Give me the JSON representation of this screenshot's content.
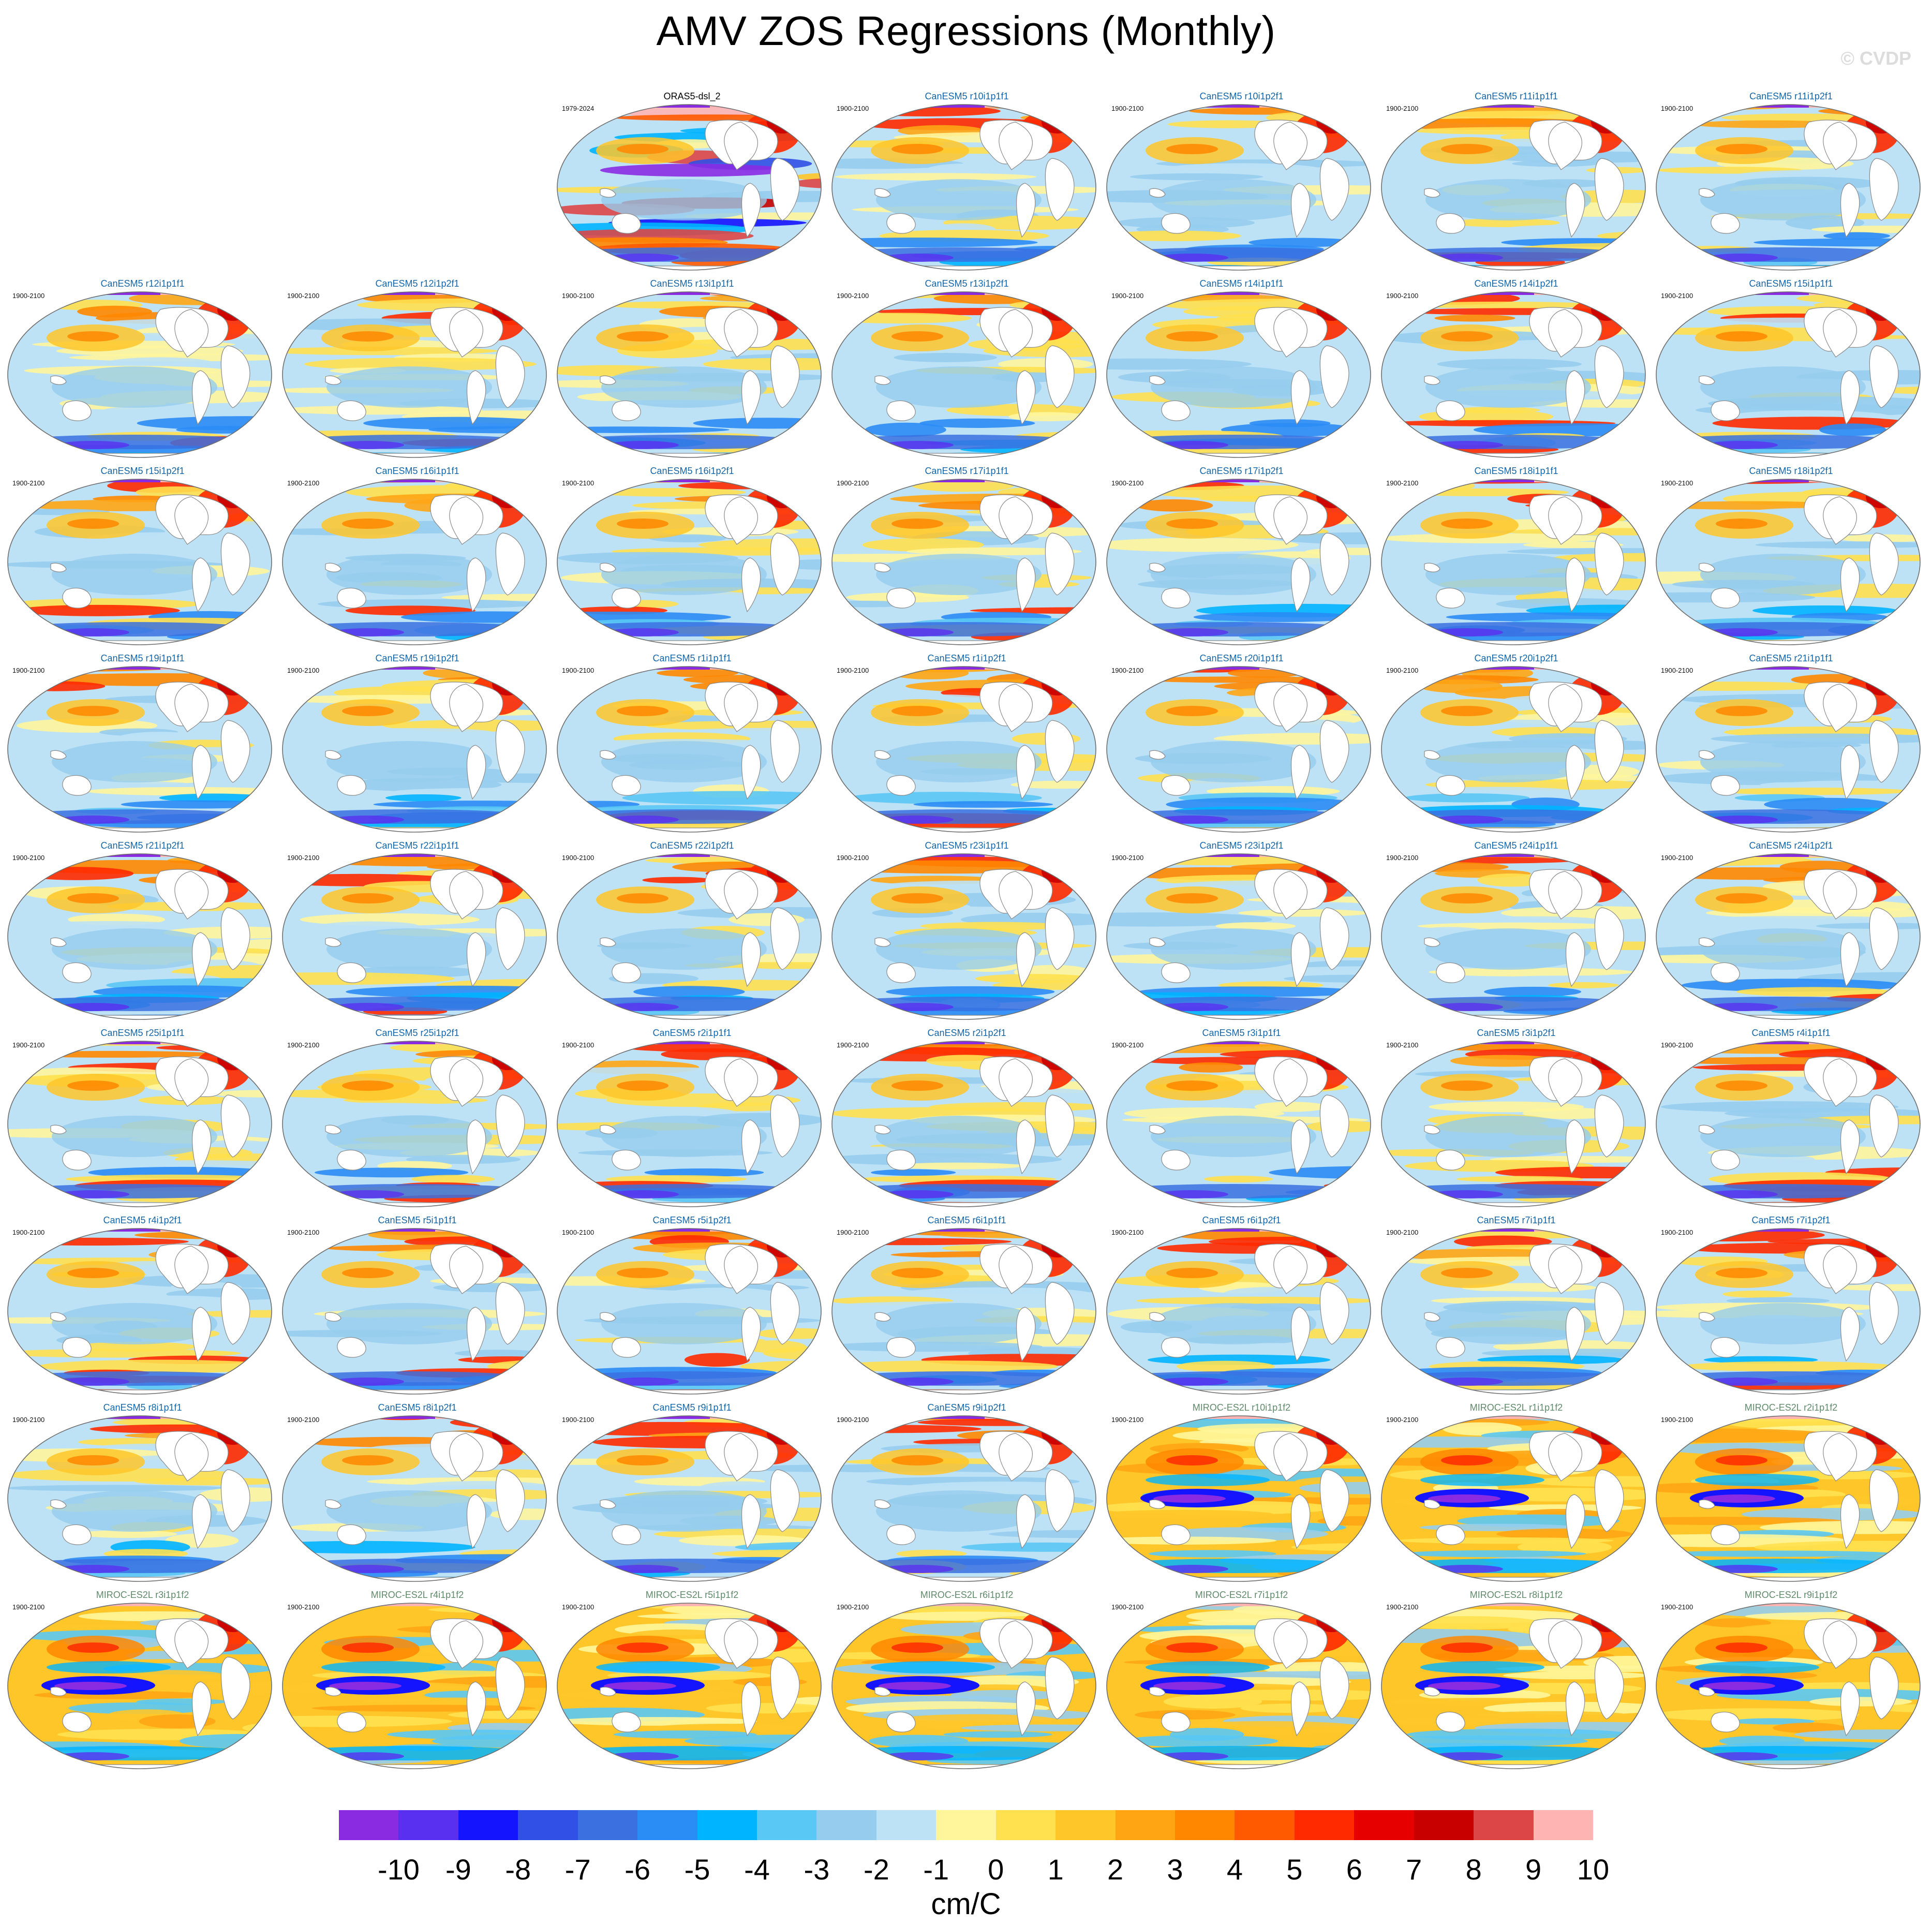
{
  "title": "AMV ZOS Regressions (Monthly)",
  "watermark": "© CVDP",
  "colorbar": {
    "colors": [
      "#8a2be2",
      "#5a30f0",
      "#1414ff",
      "#3050e6",
      "#3a70e0",
      "#2a8cf5",
      "#00b4ff",
      "#5ac8f5",
      "#96cdee",
      "#bee2f5",
      "#fff69c",
      "#ffe14f",
      "#ffc629",
      "#ffa514",
      "#ff8700",
      "#ff5a00",
      "#ff2a00",
      "#e60000",
      "#c80000",
      "#dc4646",
      "#ffb4b4"
    ],
    "labels": [
      "-10",
      "-9",
      "-8",
      "-7",
      "-6",
      "-5",
      "-4",
      "-3",
      "-2",
      "-1",
      "0",
      "1",
      "2",
      "3",
      "4",
      "5",
      "6",
      "7",
      "8",
      "9",
      "10"
    ],
    "units": "cm/C"
  },
  "panels": [
    {
      "run": "ORAS5-dsl_2",
      "period": "1979-2024",
      "model": "obs"
    },
    {
      "run": "CanESM5 r10i1p1f1",
      "period": "1900-2100",
      "model": "canesm"
    },
    {
      "run": "CanESM5 r10i1p2f1",
      "period": "1900-2100",
      "model": "canesm"
    },
    {
      "run": "CanESM5 r11i1p1f1",
      "period": "1900-2100",
      "model": "canesm"
    },
    {
      "run": "CanESM5 r11i1p2f1",
      "period": "1900-2100",
      "model": "canesm"
    },
    {
      "run": "CanESM5 r12i1p1f1",
      "period": "1900-2100",
      "model": "canesm"
    },
    {
      "run": "CanESM5 r12i1p2f1",
      "period": "1900-2100",
      "model": "canesm"
    },
    {
      "run": "CanESM5 r13i1p1f1",
      "period": "1900-2100",
      "model": "canesm"
    },
    {
      "run": "CanESM5 r13i1p2f1",
      "period": "1900-2100",
      "model": "canesm"
    },
    {
      "run": "CanESM5 r14i1p1f1",
      "period": "1900-2100",
      "model": "canesm"
    },
    {
      "run": "CanESM5 r14i1p2f1",
      "period": "1900-2100",
      "model": "canesm"
    },
    {
      "run": "CanESM5 r15i1p1f1",
      "period": "1900-2100",
      "model": "canesm"
    },
    {
      "run": "CanESM5 r15i1p2f1",
      "period": "1900-2100",
      "model": "canesm"
    },
    {
      "run": "CanESM5 r16i1p1f1",
      "period": "1900-2100",
      "model": "canesm"
    },
    {
      "run": "CanESM5 r16i1p2f1",
      "period": "1900-2100",
      "model": "canesm"
    },
    {
      "run": "CanESM5 r17i1p1f1",
      "period": "1900-2100",
      "model": "canesm"
    },
    {
      "run": "CanESM5 r17i1p2f1",
      "period": "1900-2100",
      "model": "canesm"
    },
    {
      "run": "CanESM5 r18i1p1f1",
      "period": "1900-2100",
      "model": "canesm"
    },
    {
      "run": "CanESM5 r18i1p2f1",
      "period": "1900-2100",
      "model": "canesm"
    },
    {
      "run": "CanESM5 r19i1p1f1",
      "period": "1900-2100",
      "model": "canesm"
    },
    {
      "run": "CanESM5 r19i1p2f1",
      "period": "1900-2100",
      "model": "canesm"
    },
    {
      "run": "CanESM5 r1i1p1f1",
      "period": "1900-2100",
      "model": "canesm"
    },
    {
      "run": "CanESM5 r1i1p2f1",
      "period": "1900-2100",
      "model": "canesm"
    },
    {
      "run": "CanESM5 r20i1p1f1",
      "period": "1900-2100",
      "model": "canesm"
    },
    {
      "run": "CanESM5 r20i1p2f1",
      "period": "1900-2100",
      "model": "canesm"
    },
    {
      "run": "CanESM5 r21i1p1f1",
      "period": "1900-2100",
      "model": "canesm"
    },
    {
      "run": "CanESM5 r21i1p2f1",
      "period": "1900-2100",
      "model": "canesm"
    },
    {
      "run": "CanESM5 r22i1p1f1",
      "period": "1900-2100",
      "model": "canesm"
    },
    {
      "run": "CanESM5 r22i1p2f1",
      "period": "1900-2100",
      "model": "canesm"
    },
    {
      "run": "CanESM5 r23i1p1f1",
      "period": "1900-2100",
      "model": "canesm"
    },
    {
      "run": "CanESM5 r23i1p2f1",
      "period": "1900-2100",
      "model": "canesm"
    },
    {
      "run": "CanESM5 r24i1p1f1",
      "period": "1900-2100",
      "model": "canesm"
    },
    {
      "run": "CanESM5 r24i1p2f1",
      "period": "1900-2100",
      "model": "canesm"
    },
    {
      "run": "CanESM5 r25i1p1f1",
      "period": "1900-2100",
      "model": "canesm"
    },
    {
      "run": "CanESM5 r25i1p2f1",
      "period": "1900-2100",
      "model": "canesm"
    },
    {
      "run": "CanESM5 r2i1p1f1",
      "period": "1900-2100",
      "model": "canesm"
    },
    {
      "run": "CanESM5 r2i1p2f1",
      "period": "1900-2100",
      "model": "canesm"
    },
    {
      "run": "CanESM5 r3i1p1f1",
      "period": "1900-2100",
      "model": "canesm"
    },
    {
      "run": "CanESM5 r3i1p2f1",
      "period": "1900-2100",
      "model": "canesm"
    },
    {
      "run": "CanESM5 r4i1p1f1",
      "period": "1900-2100",
      "model": "canesm"
    },
    {
      "run": "CanESM5 r4i1p2f1",
      "period": "1900-2100",
      "model": "canesm"
    },
    {
      "run": "CanESM5 r5i1p1f1",
      "period": "1900-2100",
      "model": "canesm"
    },
    {
      "run": "CanESM5 r5i1p2f1",
      "period": "1900-2100",
      "model": "canesm"
    },
    {
      "run": "CanESM5 r6i1p1f1",
      "period": "1900-2100",
      "model": "canesm"
    },
    {
      "run": "CanESM5 r6i1p2f1",
      "period": "1900-2100",
      "model": "canesm"
    },
    {
      "run": "CanESM5 r7i1p1f1",
      "period": "1900-2100",
      "model": "canesm"
    },
    {
      "run": "CanESM5 r7i1p2f1",
      "period": "1900-2100",
      "model": "canesm"
    },
    {
      "run": "CanESM5 r8i1p1f1",
      "period": "1900-2100",
      "model": "canesm"
    },
    {
      "run": "CanESM5 r8i1p2f1",
      "period": "1900-2100",
      "model": "canesm"
    },
    {
      "run": "CanESM5 r9i1p1f1",
      "period": "1900-2100",
      "model": "canesm"
    },
    {
      "run": "CanESM5 r9i1p2f1",
      "period": "1900-2100",
      "model": "canesm"
    },
    {
      "run": "MIROC-ES2L r10i1p1f2",
      "period": "1900-2100",
      "model": "miroc"
    },
    {
      "run": "MIROC-ES2L r1i1p1f2",
      "period": "1900-2100",
      "model": "miroc"
    },
    {
      "run": "MIROC-ES2L r2i1p1f2",
      "period": "1900-2100",
      "model": "miroc"
    },
    {
      "run": "MIROC-ES2L r3i1p1f2",
      "period": "1900-2100",
      "model": "miroc"
    },
    {
      "run": "MIROC-ES2L r4i1p1f2",
      "period": "1900-2100",
      "model": "miroc"
    },
    {
      "run": "MIROC-ES2L r5i1p1f2",
      "period": "1900-2100",
      "model": "miroc"
    },
    {
      "run": "MIROC-ES2L r6i1p1f2",
      "period": "1900-2100",
      "model": "miroc"
    },
    {
      "run": "MIROC-ES2L r7i1p1f2",
      "period": "1900-2100",
      "model": "miroc"
    },
    {
      "run": "MIROC-ES2L r8i1p1f2",
      "period": "1900-2100",
      "model": "miroc"
    },
    {
      "run": "MIROC-ES2L r9i1p1f2",
      "period": "1900-2100",
      "model": "miroc"
    }
  ]
}
